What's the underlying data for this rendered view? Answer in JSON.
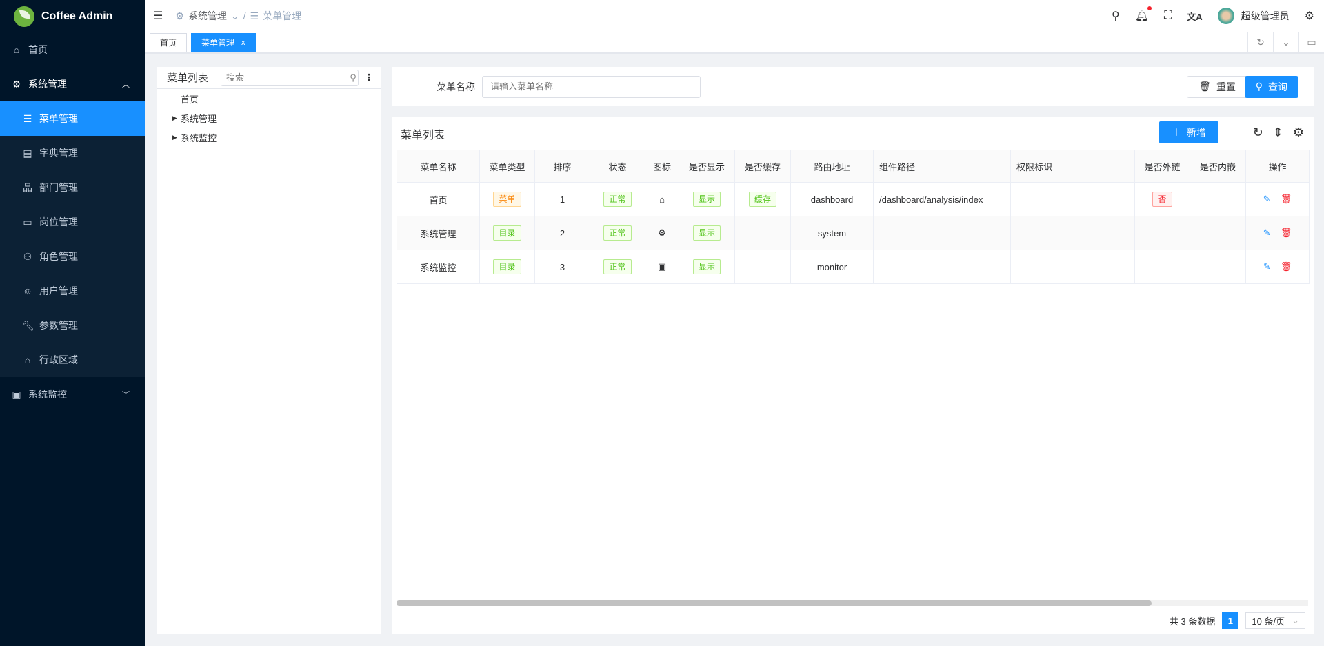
{
  "app": {
    "title": "Coffee Admin"
  },
  "sidebar": {
    "items": [
      {
        "label": "首页",
        "icon": "home-icon"
      },
      {
        "label": "系统管理",
        "icon": "gear-icon",
        "expanded": true,
        "children": [
          {
            "label": "菜单管理",
            "active": true
          },
          {
            "label": "字典管理"
          },
          {
            "label": "部门管理"
          },
          {
            "label": "岗位管理"
          },
          {
            "label": "角色管理"
          },
          {
            "label": "用户管理"
          },
          {
            "label": "参数管理"
          },
          {
            "label": "行政区域"
          }
        ]
      },
      {
        "label": "系统监控",
        "icon": "monitor-icon",
        "expanded": false
      }
    ]
  },
  "header": {
    "breadcrumb": [
      "系统管理",
      "菜单管理"
    ],
    "user": "超级管理员",
    "notification_dot": true
  },
  "tabs": [
    {
      "label": "首页"
    },
    {
      "label": "菜单管理",
      "active": true,
      "close": "x"
    }
  ],
  "tree": {
    "title": "菜单列表",
    "search_placeholder": "搜索",
    "nodes": [
      "首页",
      "系统管理",
      "系统监控"
    ]
  },
  "search": {
    "label": "菜单名称",
    "placeholder": "请输入菜单名称",
    "reset": "重置",
    "query": "查询"
  },
  "table": {
    "title": "菜单列表",
    "add": "新增",
    "columns": [
      "菜单名称",
      "菜单类型",
      "排序",
      "状态",
      "图标",
      "是否显示",
      "是否缓存",
      "路由地址",
      "组件路径",
      "权限标识",
      "是否外链",
      "是否内嵌",
      "操作"
    ],
    "rows": [
      {
        "name": "首页",
        "type": "菜单",
        "sort": "1",
        "status": "正常",
        "icon": "home-icon",
        "visible": "显示",
        "cache": "缓存",
        "route": "dashboard",
        "component": "/dashboard/analysis/index",
        "perm": "",
        "external": "否",
        "embed": ""
      },
      {
        "name": "系统管理",
        "type": "目录",
        "sort": "2",
        "status": "正常",
        "icon": "gear-icon",
        "visible": "显示",
        "cache": "",
        "route": "system",
        "component": "",
        "perm": "",
        "external": "",
        "embed": ""
      },
      {
        "name": "系统监控",
        "type": "目录",
        "sort": "3",
        "status": "正常",
        "icon": "monitor-icon",
        "visible": "显示",
        "cache": "",
        "route": "monitor",
        "component": "",
        "perm": "",
        "external": "",
        "embed": ""
      }
    ]
  },
  "pagination": {
    "total_text": "共 3 条数据",
    "current": "1",
    "page_size": "10 条/页"
  },
  "colors": {
    "primary": "#1890ff",
    "sidebar": "#001529",
    "success": "#52c41a",
    "warning": "#fa8c16",
    "danger": "#f5222d"
  }
}
